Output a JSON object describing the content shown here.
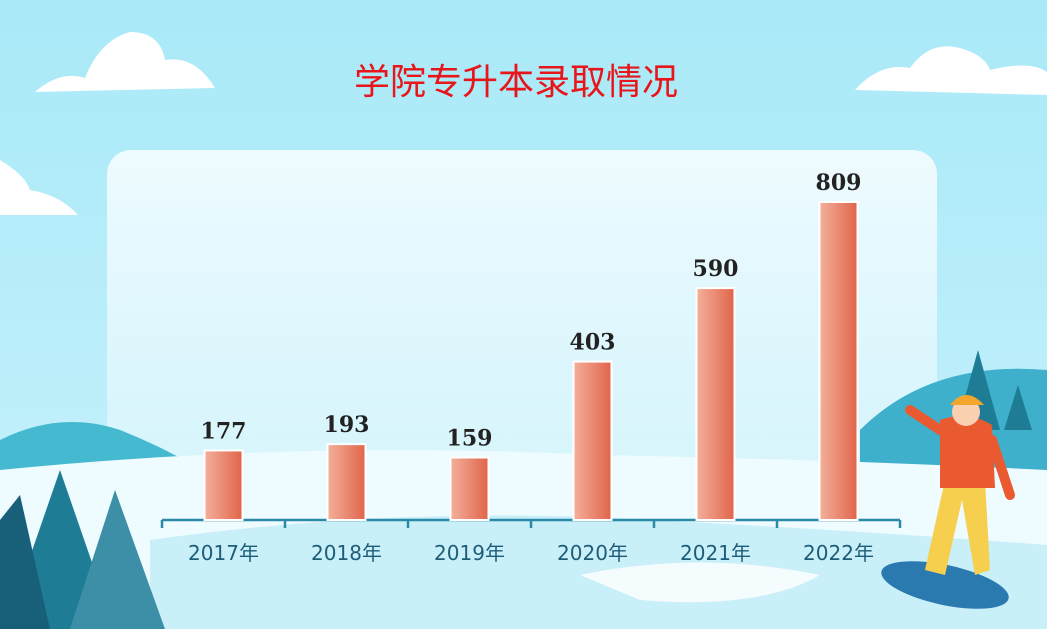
{
  "chart_data": {
    "type": "bar",
    "title": "学院专升本录取情况",
    "categories": [
      "2017年",
      "2018年",
      "2019年",
      "2020年",
      "2021年",
      "2022年"
    ],
    "values": [
      177,
      193,
      159,
      403,
      590,
      809
    ],
    "color": "#e56f50"
  }
}
